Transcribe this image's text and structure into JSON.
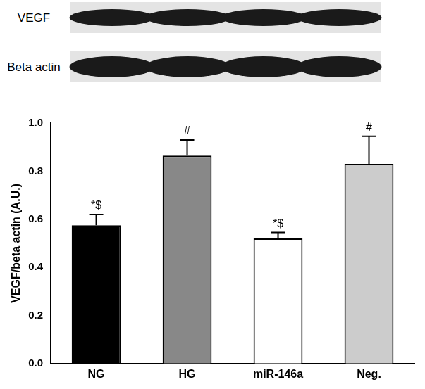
{
  "chart_data": {
    "type": "bar",
    "categories": [
      "NG",
      "HG",
      "miR-146a",
      "Neg."
    ],
    "values": [
      0.575,
      0.865,
      0.52,
      0.83
    ],
    "errors": [
      0.045,
      0.065,
      0.025,
      0.115
    ],
    "annotations": [
      "*$",
      "#",
      "*$",
      "#"
    ],
    "colors": [
      "#000000",
      "#888888",
      "#ffffff",
      "#cccccc"
    ],
    "y_label": "VEGF/beta actin (A.U.)",
    "ylim": [
      0,
      1
    ],
    "yticks": [
      {
        "value": 0,
        "label": "0.0"
      },
      {
        "value": 0.2,
        "label": "0.2"
      },
      {
        "value": 0.4,
        "label": "0.4"
      },
      {
        "value": 0.6,
        "label": "0.6"
      },
      {
        "value": 0.8,
        "label": "0.8"
      },
      {
        "value": 1,
        "label": "1.0"
      }
    ],
    "grid": false
  },
  "blot": {
    "rows": [
      "VEGF",
      "Beta actin"
    ]
  }
}
